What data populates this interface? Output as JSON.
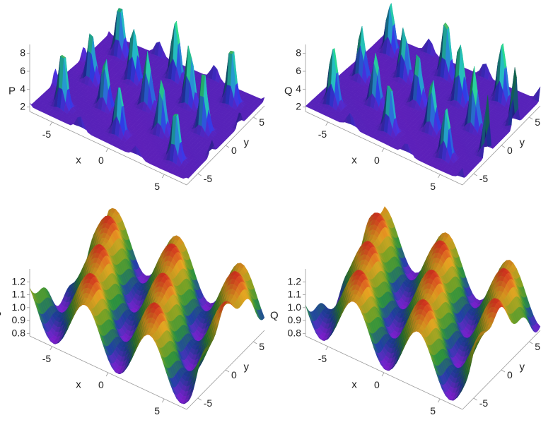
{
  "chart_data": [
    {
      "type": "surface",
      "zlabel": "P",
      "xlabel": "x",
      "ylabel": "y",
      "x_ticks": [
        "-5",
        "0",
        "5"
      ],
      "y_ticks": [
        "-5",
        "0",
        "5"
      ],
      "z_ticks": [
        "2",
        "4",
        "6",
        "8"
      ],
      "xlim": [
        -7,
        7
      ],
      "ylim": [
        -7,
        7
      ],
      "zlim": [
        1.5,
        9
      ],
      "surface_min": 2,
      "surface_max": 8.6,
      "colormap": "blue-green",
      "colors": [
        "#7a1fd0",
        "#2a33c8",
        "#1f9fb0",
        "#25c07a",
        "#c8e040"
      ]
    },
    {
      "type": "surface",
      "zlabel": "Q",
      "xlabel": "x",
      "ylabel": "y",
      "x_ticks": [
        "-5",
        "0",
        "5"
      ],
      "y_ticks": [
        "-5",
        "0",
        "5"
      ],
      "z_ticks": [
        "2",
        "4",
        "6",
        "8"
      ],
      "xlim": [
        -7,
        7
      ],
      "ylim": [
        -7,
        7
      ],
      "zlim": [
        1.5,
        9
      ],
      "surface_min": 2,
      "surface_max": 9,
      "colormap": "blue-green",
      "colors": [
        "#7a1fd0",
        "#2a33c8",
        "#1f9fb0",
        "#25c07a",
        "#c8e040"
      ]
    },
    {
      "type": "surface",
      "zlabel": "P",
      "xlabel": "x",
      "ylabel": "y",
      "x_ticks": [
        "-5",
        "0",
        "5"
      ],
      "y_ticks": [
        "-5",
        "0",
        "5"
      ],
      "z_ticks": [
        "0.8",
        "0.9",
        "1.0",
        "1.1",
        "1.2"
      ],
      "xlim": [
        -7,
        7
      ],
      "ylim": [
        -7,
        7
      ],
      "zlim": [
        0.78,
        1.3
      ],
      "surface_min": 0.8,
      "surface_max": 1.25,
      "colormap": "rainbow",
      "colors": [
        "#8a1ee0",
        "#1f3fa0",
        "#2a8a3a",
        "#7a9a20",
        "#e0a020",
        "#e03020"
      ]
    },
    {
      "type": "surface",
      "zlabel": "Q",
      "xlabel": "x",
      "ylabel": "y",
      "x_ticks": [
        "-5",
        "0",
        "5"
      ],
      "y_ticks": [
        "-5",
        "0",
        "5"
      ],
      "z_ticks": [
        "0.8",
        "0.9",
        "1.0",
        "1.1",
        "1.2"
      ],
      "xlim": [
        -7,
        7
      ],
      "ylim": [
        -7,
        7
      ],
      "zlim": [
        0.78,
        1.3
      ],
      "surface_min": 0.8,
      "surface_max": 1.25,
      "colormap": "rainbow",
      "colors": [
        "#8a1ee0",
        "#1f3fa0",
        "#2a8a3a",
        "#7a9a20",
        "#e0a020",
        "#e03020"
      ]
    }
  ]
}
